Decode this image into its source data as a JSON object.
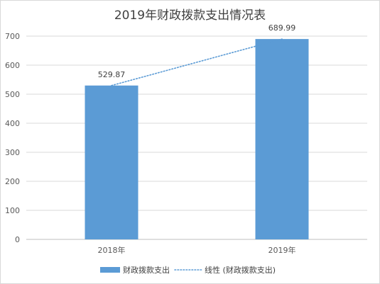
{
  "chart_data": {
    "type": "bar",
    "title": "2019年财政拨款支出情况表",
    "categories": [
      "2018年",
      "2019年"
    ],
    "series": [
      {
        "name": "财政拨款支出",
        "values": [
          529.87,
          689.99
        ],
        "color": "#5b9bd5"
      }
    ],
    "data_labels": [
      "529.87",
      "689.99"
    ],
    "trendline": {
      "name": "线性 (财政拨款支出)",
      "type": "linear",
      "color": "#5b9bd5",
      "style": "dotted"
    },
    "yticks": [
      0,
      100,
      200,
      300,
      400,
      500,
      600,
      700
    ],
    "ylim": [
      0,
      700
    ],
    "grid": true,
    "legend": "bottom"
  }
}
